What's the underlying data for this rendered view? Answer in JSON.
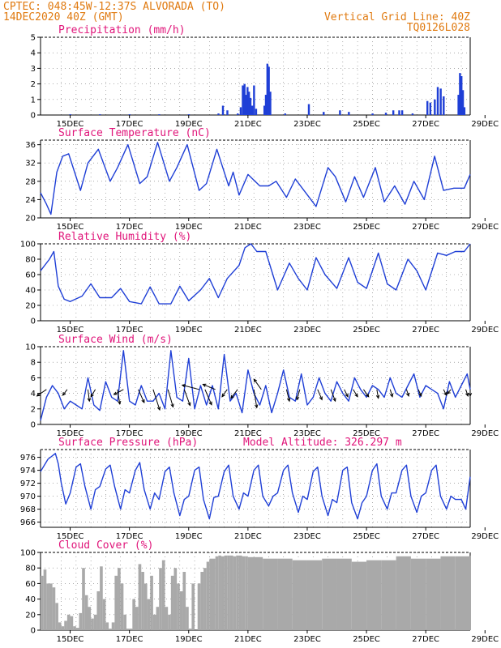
{
  "header": {
    "line1": "CPTEC:   048:45W-12:37S  ALVORADA (TO)",
    "line2": "14DEC2020 40Z (GMT)",
    "grid_note": "Vertical Grid Line: 40Z",
    "code": "TQ0126L028"
  },
  "colors": {
    "header": "#e07a10",
    "panel_title": "#e0157a",
    "series": "#1f3fd6",
    "cloud": "#a9a9a9",
    "arrow": "#000000"
  },
  "chart_data": [
    {
      "id": "precip",
      "type": "bar",
      "title": "Precipitation (mm/h)",
      "ylim": [
        0,
        5
      ],
      "yticks": [
        0,
        1,
        2,
        3,
        4,
        5
      ],
      "xticks": [
        "15DEC",
        "17DEC",
        "19DEC",
        "21DEC",
        "23DEC",
        "25DEC",
        "27DEC",
        "29DEC"
      ],
      "points": [
        {
          "x": 1.0,
          "y": 0.05
        },
        {
          "x": 2.0,
          "y": 0.05
        },
        {
          "x": 3.0,
          "y": 0.05
        },
        {
          "x": 4.0,
          "y": 0.05
        },
        {
          "x": 5.0,
          "y": 0.05
        },
        {
          "x": 6.0,
          "y": 0.1
        },
        {
          "x": 6.15,
          "y": 0.6
        },
        {
          "x": 6.3,
          "y": 0.3
        },
        {
          "x": 6.65,
          "y": 0.1
        },
        {
          "x": 6.75,
          "y": 0.5
        },
        {
          "x": 6.82,
          "y": 1.9
        },
        {
          "x": 6.88,
          "y": 2.0
        },
        {
          "x": 6.93,
          "y": 1.3
        },
        {
          "x": 6.98,
          "y": 1.8
        },
        {
          "x": 7.03,
          "y": 1.5
        },
        {
          "x": 7.08,
          "y": 1.1
        },
        {
          "x": 7.14,
          "y": 0.6
        },
        {
          "x": 7.2,
          "y": 1.9
        },
        {
          "x": 7.27,
          "y": 0.4
        },
        {
          "x": 7.55,
          "y": 0.6
        },
        {
          "x": 7.6,
          "y": 1.3
        },
        {
          "x": 7.65,
          "y": 3.3
        },
        {
          "x": 7.7,
          "y": 3.1
        },
        {
          "x": 7.75,
          "y": 1.5
        },
        {
          "x": 8.25,
          "y": 0.1
        },
        {
          "x": 9.05,
          "y": 0.7
        },
        {
          "x": 9.55,
          "y": 0.2
        },
        {
          "x": 10.1,
          "y": 0.3
        },
        {
          "x": 10.4,
          "y": 0.2
        },
        {
          "x": 11.2,
          "y": 0.1
        },
        {
          "x": 11.65,
          "y": 0.15
        },
        {
          "x": 11.9,
          "y": 0.3
        },
        {
          "x": 12.1,
          "y": 0.3
        },
        {
          "x": 12.2,
          "y": 0.3
        },
        {
          "x": 12.55,
          "y": 0.1
        },
        {
          "x": 13.05,
          "y": 0.9
        },
        {
          "x": 13.15,
          "y": 0.8
        },
        {
          "x": 13.3,
          "y": 1.0
        },
        {
          "x": 13.4,
          "y": 1.8
        },
        {
          "x": 13.5,
          "y": 1.7
        },
        {
          "x": 13.6,
          "y": 1.2
        },
        {
          "x": 14.1,
          "y": 1.3
        },
        {
          "x": 14.15,
          "y": 2.7
        },
        {
          "x": 14.2,
          "y": 2.5
        },
        {
          "x": 14.25,
          "y": 1.6
        },
        {
          "x": 14.3,
          "y": 0.5
        }
      ]
    },
    {
      "id": "temp",
      "type": "line",
      "title": "Surface Temperature (nC)",
      "ylim": [
        20,
        37
      ],
      "yticks": [
        20,
        24,
        28,
        32,
        36
      ],
      "xticks": [
        "15DEC",
        "17DEC",
        "19DEC",
        "21DEC",
        "23DEC",
        "25DEC",
        "27DEC",
        "29DEC"
      ],
      "x": [
        0,
        0.2,
        0.35,
        0.55,
        0.75,
        0.95,
        1.35,
        1.6,
        1.95,
        2.35,
        2.6,
        2.95,
        3.35,
        3.6,
        3.95,
        4.35,
        4.6,
        4.95,
        5.35,
        5.6,
        5.95,
        6.35,
        6.5,
        6.7,
        7.0,
        7.4,
        7.7,
        7.95,
        8.3,
        8.6,
        8.95,
        9.3,
        9.7,
        9.95,
        10.3,
        10.6,
        10.9,
        11.3,
        11.6,
        11.95,
        12.3,
        12.6,
        12.95,
        13.3,
        13.6,
        13.95,
        14.3,
        14.5
      ],
      "y": [
        25.5,
        23,
        20.8,
        30,
        33.5,
        34,
        26,
        32,
        35,
        28,
        31,
        36,
        27.5,
        29,
        36.5,
        28,
        31,
        36,
        26,
        27.5,
        35,
        27,
        30,
        25,
        29.5,
        27,
        27,
        28,
        24.5,
        28.5,
        25.5,
        22.5,
        31,
        29,
        23.5,
        29,
        24.5,
        31,
        23.5,
        27,
        23,
        28,
        24,
        33.5,
        26,
        26.5,
        26.5,
        29.5
      ]
    },
    {
      "id": "rh",
      "type": "line",
      "title": "Relative Humidity (%)",
      "ylim": [
        0,
        100
      ],
      "yticks": [
        0,
        20,
        40,
        60,
        80,
        100
      ],
      "xticks": [
        "15DEC",
        "17DEC",
        "19DEC",
        "21DEC",
        "23DEC",
        "25DEC",
        "27DEC",
        "29DEC"
      ],
      "x": [
        0,
        0.3,
        0.45,
        0.6,
        0.8,
        1.0,
        1.4,
        1.7,
        2.0,
        2.4,
        2.7,
        3.0,
        3.4,
        3.7,
        4.0,
        4.4,
        4.7,
        5.0,
        5.4,
        5.7,
        6.0,
        6.3,
        6.7,
        6.9,
        7.1,
        7.3,
        7.6,
        8.0,
        8.4,
        8.7,
        9.0,
        9.3,
        9.6,
        10.0,
        10.4,
        10.7,
        11.0,
        11.4,
        11.7,
        12.0,
        12.4,
        12.7,
        13.0,
        13.4,
        13.7,
        14.0,
        14.3,
        14.5
      ],
      "y": [
        65,
        80,
        90,
        45,
        28,
        25,
        32,
        48,
        30,
        30,
        42,
        25,
        22,
        44,
        22,
        22,
        45,
        26,
        40,
        55,
        30,
        55,
        72,
        95,
        100,
        90,
        90,
        40,
        75,
        55,
        40,
        82,
        60,
        42,
        82,
        50,
        42,
        88,
        48,
        40,
        80,
        65,
        40,
        88,
        85,
        90,
        90,
        100
      ]
    },
    {
      "id": "wind",
      "type": "line",
      "title": "Surface Wind (m/s)",
      "ylim": [
        0,
        10
      ],
      "yticks": [
        0,
        2,
        4,
        6,
        8,
        10
      ],
      "xticks": [
        "15DEC",
        "17DEC",
        "19DEC",
        "21DEC",
        "23DEC",
        "25DEC",
        "27DEC",
        "29DEC"
      ],
      "x": [
        0,
        0.2,
        0.4,
        0.6,
        0.8,
        1.0,
        1.2,
        1.4,
        1.6,
        1.8,
        2.0,
        2.2,
        2.4,
        2.6,
        2.8,
        3.0,
        3.2,
        3.4,
        3.6,
        3.8,
        4.0,
        4.2,
        4.4,
        4.6,
        4.8,
        5.0,
        5.2,
        5.4,
        5.6,
        5.8,
        6.0,
        6.2,
        6.4,
        6.6,
        6.8,
        7.0,
        7.2,
        7.4,
        7.6,
        7.8,
        8.0,
        8.2,
        8.4,
        8.6,
        8.8,
        9.0,
        9.2,
        9.4,
        9.6,
        9.8,
        10.0,
        10.2,
        10.4,
        10.6,
        10.8,
        11.0,
        11.2,
        11.4,
        11.6,
        11.8,
        12.0,
        12.2,
        12.4,
        12.6,
        12.8,
        13.0,
        13.2,
        13.4,
        13.6,
        13.8,
        14.0,
        14.2,
        14.4,
        14.5
      ],
      "y": [
        0.5,
        3.5,
        5,
        4,
        2,
        3,
        2.5,
        2,
        6,
        2.5,
        1.8,
        5.5,
        3.5,
        3,
        9.5,
        3,
        2.5,
        5,
        3,
        3,
        4,
        2,
        9.5,
        3.5,
        3,
        8.5,
        2,
        5,
        2.5,
        5,
        2,
        9,
        3,
        4,
        1.5,
        7,
        4,
        2.5,
        5,
        1.5,
        4,
        7,
        3.5,
        3,
        6.5,
        2.5,
        3.5,
        6,
        4,
        3,
        5.5,
        4,
        3,
        6,
        4.5,
        3.5,
        5,
        4.5,
        3.5,
        6,
        4,
        3.5,
        5,
        6.5,
        3.5,
        5,
        4.5,
        4,
        2,
        5.5,
        3.5,
        5,
        6.5,
        4.5
      ],
      "arrows": [
        {
          "x": 0.2,
          "u": -1.3,
          "v": 0.9
        },
        {
          "x": 0.9,
          "u": -0.6,
          "v": 0.8
        },
        {
          "x": 1.6,
          "u": 0.2,
          "v": 1.6
        },
        {
          "x": 1.85,
          "u": -0.6,
          "v": 1.0
        },
        {
          "x": 2.6,
          "u": 0.3,
          "v": 2.0
        },
        {
          "x": 2.8,
          "u": -1.3,
          "v": 0.7
        },
        {
          "x": 3.3,
          "u": 0.8,
          "v": 1.8
        },
        {
          "x": 3.8,
          "u": 0.9,
          "v": 2.8
        },
        {
          "x": 4.3,
          "u": 0.7,
          "v": 2.4
        },
        {
          "x": 4.85,
          "u": 0.8,
          "v": 2.2
        },
        {
          "x": 5.35,
          "u": -2.3,
          "v": -0.6
        },
        {
          "x": 5.55,
          "u": 0.9,
          "v": 2.1
        },
        {
          "x": 5.9,
          "u": -1.7,
          "v": -0.7
        },
        {
          "x": 6.3,
          "u": -0.7,
          "v": 1.0
        },
        {
          "x": 6.65,
          "u": -0.9,
          "v": 1.2
        },
        {
          "x": 7.2,
          "u": 0.4,
          "v": 2.5
        },
        {
          "x": 7.45,
          "u": -1.0,
          "v": -1.4
        },
        {
          "x": 8.3,
          "u": 0.4,
          "v": 1.6
        },
        {
          "x": 8.75,
          "u": -0.4,
          "v": 1.4
        },
        {
          "x": 9.35,
          "u": 0.6,
          "v": 1.4
        },
        {
          "x": 9.8,
          "u": 0.6,
          "v": 1.6
        },
        {
          "x": 10.25,
          "u": 0.5,
          "v": 1.0
        },
        {
          "x": 10.55,
          "u": 0.6,
          "v": 1.0
        },
        {
          "x": 10.9,
          "u": 0.7,
          "v": 1.0
        },
        {
          "x": 11.35,
          "u": 0.2,
          "v": 1.2
        },
        {
          "x": 11.8,
          "u": 0.3,
          "v": 1.0
        },
        {
          "x": 12.35,
          "u": 0.3,
          "v": 0.9
        },
        {
          "x": 12.75,
          "u": 0.4,
          "v": 0.9
        },
        {
          "x": 13.6,
          "u": 0.4,
          "v": 0.8
        },
        {
          "x": 13.85,
          "u": -0.5,
          "v": 0.6
        },
        {
          "x": 14.35,
          "u": 0.3,
          "v": 0.9
        },
        {
          "x": 14.5,
          "u": 0.0,
          "v": 0.9
        }
      ]
    },
    {
      "id": "press",
      "type": "line",
      "title": "Surface Pressure (hPa)",
      "subtitle": "Model Altitude: 326.297 m",
      "ylim": [
        965.2,
        977.2
      ],
      "yticks": [
        966,
        968,
        970,
        972,
        974,
        976
      ],
      "xticks": [
        "15DEC",
        "17DEC",
        "19DEC",
        "21DEC",
        "23DEC",
        "25DEC",
        "27DEC",
        "29DEC"
      ],
      "x": [
        0,
        0.25,
        0.5,
        0.6,
        0.7,
        0.85,
        1.0,
        1.2,
        1.35,
        1.5,
        1.7,
        1.85,
        2.0,
        2.2,
        2.35,
        2.5,
        2.7,
        2.85,
        3.0,
        3.2,
        3.35,
        3.5,
        3.7,
        3.85,
        4.0,
        4.2,
        4.35,
        4.5,
        4.7,
        4.85,
        5.0,
        5.2,
        5.35,
        5.5,
        5.7,
        5.85,
        6.0,
        6.2,
        6.35,
        6.5,
        6.7,
        6.85,
        7.0,
        7.2,
        7.35,
        7.5,
        7.7,
        7.85,
        8.0,
        8.2,
        8.35,
        8.5,
        8.7,
        8.85,
        9.0,
        9.2,
        9.35,
        9.5,
        9.7,
        9.85,
        10.0,
        10.2,
        10.35,
        10.5,
        10.7,
        10.85,
        11.0,
        11.2,
        11.35,
        11.5,
        11.7,
        11.85,
        12.0,
        12.2,
        12.35,
        12.5,
        12.7,
        12.85,
        13.0,
        13.2,
        13.35,
        13.5,
        13.7,
        13.85,
        14.0,
        14.2,
        14.35,
        14.5
      ],
      "y": [
        973.8,
        975.7,
        976.6,
        975,
        972,
        968.8,
        970.5,
        974.5,
        975,
        971.5,
        968,
        971,
        971.5,
        974.2,
        974.8,
        971.5,
        968,
        971,
        970.5,
        974,
        975.2,
        971,
        968,
        970.5,
        969.5,
        973.8,
        974.5,
        970.5,
        967,
        969.5,
        970,
        974,
        974.5,
        969.5,
        966.5,
        969.8,
        970,
        973.8,
        974.8,
        970,
        968,
        970.5,
        970,
        974,
        974.8,
        970,
        968.5,
        970,
        970.5,
        974,
        974.8,
        970.5,
        967.5,
        970,
        969.5,
        973.8,
        974.5,
        970,
        967,
        969.5,
        969,
        974,
        974.5,
        969,
        966.5,
        969,
        970,
        974,
        975,
        970,
        968,
        970.5,
        970.5,
        974,
        974.8,
        970,
        967.5,
        970,
        970.5,
        974,
        974.8,
        970,
        968,
        970,
        969.5,
        969.5,
        968,
        973
      ]
    },
    {
      "id": "cloud",
      "type": "area",
      "title": "Cloud Cover (%)",
      "ylim": [
        0,
        100
      ],
      "yticks": [
        0,
        20,
        40,
        60,
        80,
        100
      ],
      "xticks": [
        "15DEC",
        "17DEC",
        "19DEC",
        "21DEC",
        "23DEC",
        "25DEC",
        "27DEC",
        "29DEC"
      ],
      "x": [
        0,
        0.1,
        0.2,
        0.3,
        0.4,
        0.5,
        0.6,
        0.7,
        0.8,
        0.9,
        1.0,
        1.1,
        1.2,
        1.3,
        1.4,
        1.5,
        1.6,
        1.7,
        1.8,
        1.9,
        2.0,
        2.1,
        2.2,
        2.3,
        2.4,
        2.5,
        2.6,
        2.7,
        2.8,
        2.9,
        3.0,
        3.1,
        3.2,
        3.3,
        3.4,
        3.5,
        3.6,
        3.7,
        3.8,
        3.9,
        4.0,
        4.1,
        4.2,
        4.3,
        4.4,
        4.5,
        4.6,
        4.7,
        4.8,
        4.9,
        5.0,
        5.1,
        5.2,
        5.3,
        5.4,
        5.5,
        5.6,
        5.7,
        5.8,
        5.9,
        6.0,
        6.1,
        6.2,
        6.3,
        6.4,
        6.5,
        6.6,
        6.7,
        6.8,
        6.9,
        7.0,
        7.5,
        8.0,
        8.5,
        9.0,
        9.5,
        10.0,
        10.5,
        11.0,
        11.5,
        12.0,
        12.5,
        13.0,
        13.5,
        14.0,
        14.5
      ],
      "y": [
        70,
        78,
        60,
        60,
        55,
        35,
        10,
        5,
        12,
        20,
        18,
        5,
        3,
        22,
        80,
        45,
        30,
        15,
        20,
        50,
        82,
        40,
        10,
        2,
        10,
        70,
        80,
        60,
        20,
        2,
        2,
        40,
        30,
        85,
        75,
        60,
        40,
        70,
        20,
        30,
        80,
        90,
        30,
        20,
        70,
        80,
        60,
        50,
        75,
        30,
        2,
        60,
        0,
        60,
        75,
        80,
        88,
        92,
        92,
        95,
        96,
        95,
        96,
        96,
        96,
        95,
        96,
        96,
        95,
        95,
        94,
        92,
        92,
        90,
        90,
        92,
        92,
        88,
        90,
        90,
        95,
        92,
        92,
        95,
        95,
        96
      ]
    }
  ]
}
